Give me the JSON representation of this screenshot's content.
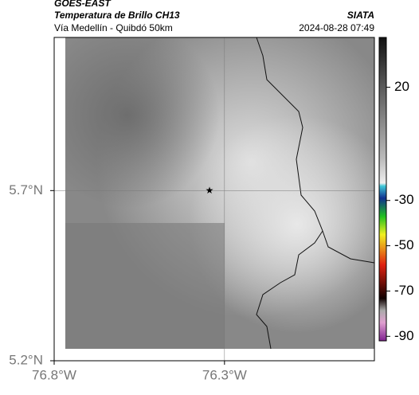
{
  "header": {
    "title": "GOES-EAST",
    "subtitle": "Temperatura de Brillo CH13",
    "source": "SIATA",
    "route": "Vía Medellín - Quibdó 50km",
    "datetime": "2024-08-28 07:49"
  },
  "map": {
    "xlim": [
      -76.8,
      -75.86
    ],
    "ylim": [
      5.2,
      6.15
    ],
    "xticks": [
      {
        "value": -76.8,
        "label": "76.8°W"
      },
      {
        "value": -76.3,
        "label": "76.3°W"
      }
    ],
    "yticks": [
      {
        "value": 5.7,
        "label": "5.7°N"
      },
      {
        "value": 5.2,
        "label": "5.2°N"
      }
    ],
    "colorbar": {
      "lim": [
        -92,
        42
      ],
      "ticks": [
        20,
        -30,
        -50,
        -70,
        -90
      ]
    }
  }
}
